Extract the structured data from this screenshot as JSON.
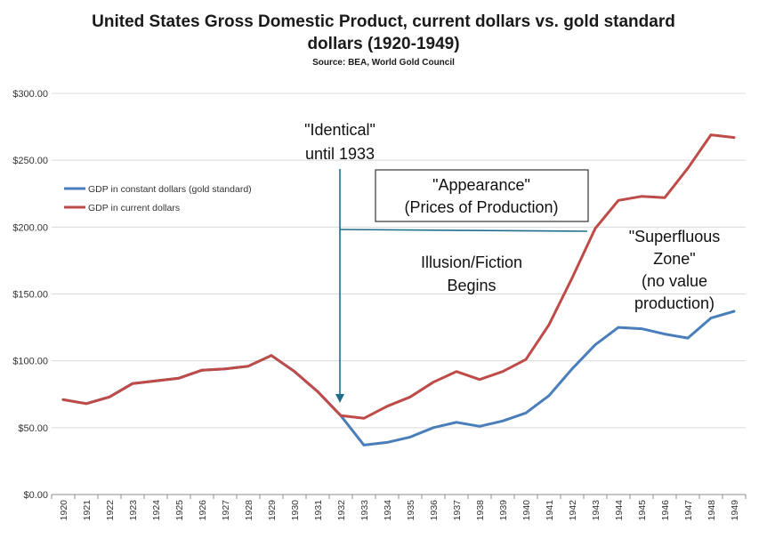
{
  "colors": {
    "constant": "#4a7ebb",
    "current": "#be4b48",
    "grid": "#d9d9d9",
    "annotation_line": "#1f6e8c"
  },
  "chart_data": {
    "type": "line",
    "title_line1": "United States Gross Domestic Product, current dollars vs. gold standard",
    "title_line2": "dollars (1920-1949)",
    "subtitle": "Source: BEA, World Gold Council",
    "xlabel": "",
    "ylabel": "",
    "ylim": [
      0,
      300
    ],
    "ytick_values": [
      0,
      50,
      100,
      150,
      200,
      250,
      300
    ],
    "ytick_labels": [
      "$0.00",
      "$50.00",
      "$100.00",
      "$150.00",
      "$200.00",
      "$250.00",
      "$300.00"
    ],
    "grid": true,
    "legend_position": "upper-left",
    "categories": [
      "1920",
      "1921",
      "1922",
      "1923",
      "1924",
      "1925",
      "1926",
      "1927",
      "1928",
      "1929",
      "1930",
      "1931",
      "1932",
      "1933",
      "1934",
      "1935",
      "1936",
      "1937",
      "1938",
      "1939",
      "1940",
      "1941",
      "1942",
      "1943",
      "1944",
      "1945",
      "1946",
      "1947",
      "1948",
      "1949"
    ],
    "series": [
      {
        "name": "GDP in constant dollars (gold standard)",
        "values": [
          71,
          68,
          73,
          83,
          85,
          87,
          93,
          94,
          96,
          104,
          92,
          77,
          59,
          37,
          39,
          43,
          50,
          54,
          51,
          55,
          61,
          74,
          94,
          112,
          125,
          124,
          120,
          117,
          132,
          137
        ]
      },
      {
        "name": "GDP in current dollars",
        "values": [
          71,
          68,
          73,
          83,
          85,
          87,
          93,
          94,
          96,
          104,
          92,
          77,
          59,
          57,
          66,
          73,
          84,
          92,
          86,
          92,
          101,
          127,
          162,
          199,
          220,
          223,
          222,
          244,
          269,
          267
        ]
      }
    ],
    "annotations": {
      "identical_line1": "\"Identical\"",
      "identical_line2": "until 1933",
      "appearance_line1": "\"Appearance\"",
      "appearance_line2": "(Prices of Production)",
      "illusion_line1": "Illusion/Fiction",
      "illusion_line2": "Begins",
      "superfluous_line1": "\"Superfluous",
      "superfluous_line2": "Zone\"",
      "superfluous_line3": "(no value",
      "superfluous_line4": "production)"
    }
  }
}
